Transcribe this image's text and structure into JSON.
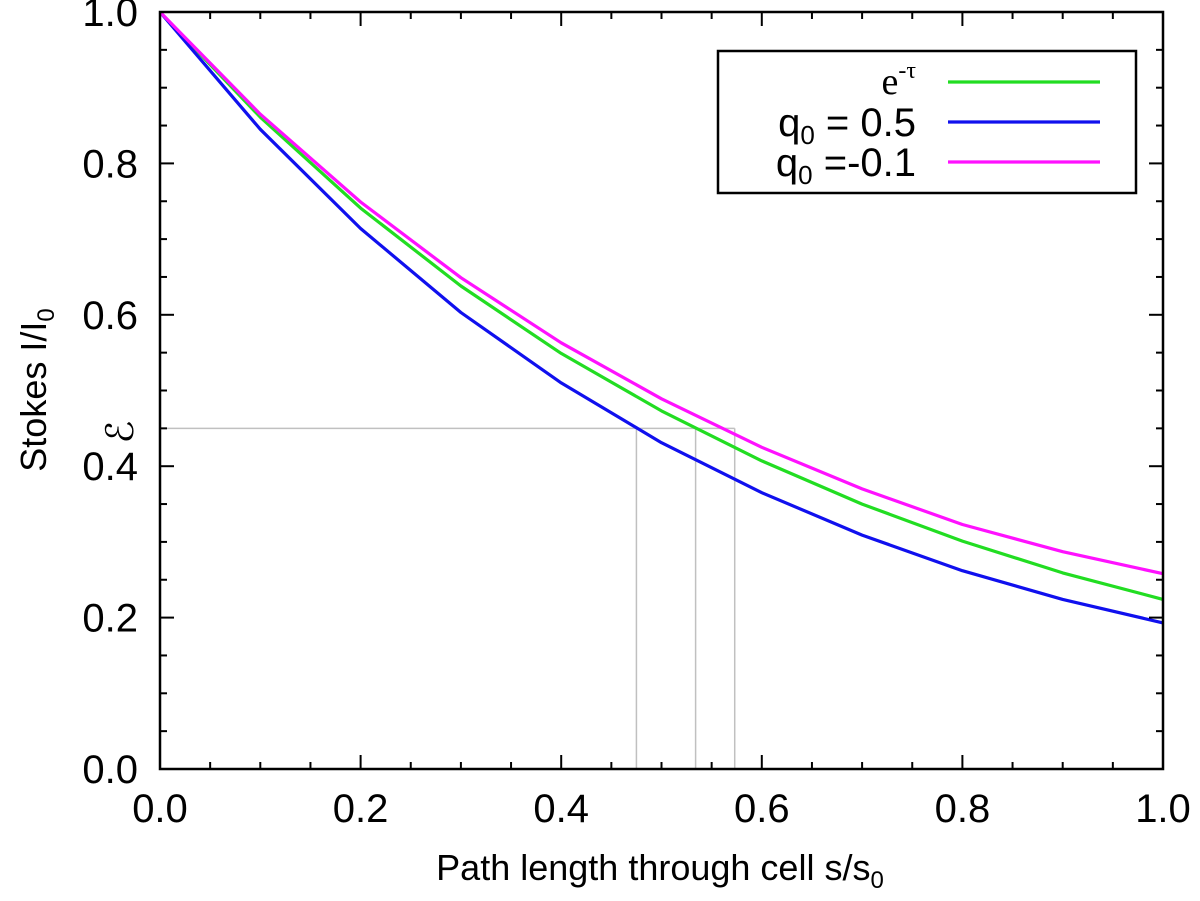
{
  "chart_data": {
    "type": "line",
    "xlabel": "Path length through cell s/s",
    "xlabel_sub": "0",
    "ylabel": "Stokes  I/I",
    "ylabel_sub": "0",
    "xlim": [
      0.0,
      1.0
    ],
    "ylim": [
      0.0,
      1.0
    ],
    "x_ticks": [
      "0.0",
      "0.2",
      "0.4",
      "0.6",
      "0.8",
      "1.0"
    ],
    "y_ticks": [
      "0.0",
      "0.2",
      "0.4",
      "0.6",
      "0.8",
      "1.0"
    ],
    "x_tick_values": [
      0.0,
      0.2,
      0.4,
      0.6,
      0.8,
      1.0
    ],
    "y_tick_values": [
      0.0,
      0.2,
      0.4,
      0.6,
      0.8,
      1.0
    ],
    "x_minor_step": 0.05,
    "y_minor_step": 0.05,
    "legend_position": "top-right",
    "series": [
      {
        "name": "e^-τ",
        "label_base": "e",
        "label_sup": "-τ",
        "color": "#22dd22",
        "x": [
          0.0,
          0.1,
          0.2,
          0.3,
          0.4,
          0.5,
          0.6,
          0.7,
          0.8,
          0.9,
          1.0
        ],
        "values": [
          1.0,
          0.861,
          0.741,
          0.638,
          0.549,
          0.473,
          0.407,
          0.35,
          0.301,
          0.259,
          0.224
        ]
      },
      {
        "name": "q0 = 0.5",
        "label_base": "q",
        "label_sub": "0",
        "label_rest": " = 0.5",
        "color": "#1010ee",
        "x": [
          0.0,
          0.1,
          0.2,
          0.3,
          0.4,
          0.5,
          0.6,
          0.7,
          0.8,
          0.9,
          1.0
        ],
        "values": [
          1.0,
          0.845,
          0.714,
          0.603,
          0.51,
          0.431,
          0.365,
          0.309,
          0.262,
          0.224,
          0.193
        ]
      },
      {
        "name": "q0 =-0.1",
        "label_base": "q",
        "label_sub": "0",
        "label_rest": " =-0.1",
        "color": "#ff11ff",
        "x": [
          0.0,
          0.1,
          0.2,
          0.3,
          0.4,
          0.5,
          0.6,
          0.7,
          0.8,
          0.9,
          1.0
        ],
        "values": [
          1.0,
          0.865,
          0.749,
          0.649,
          0.563,
          0.489,
          0.425,
          0.37,
          0.323,
          0.287,
          0.258
        ]
      }
    ],
    "annotation": {
      "symbol": "ℰ",
      "level": 0.45,
      "crossings": [
        0.475,
        0.534,
        0.573
      ],
      "color": "#c0c0c0"
    }
  }
}
